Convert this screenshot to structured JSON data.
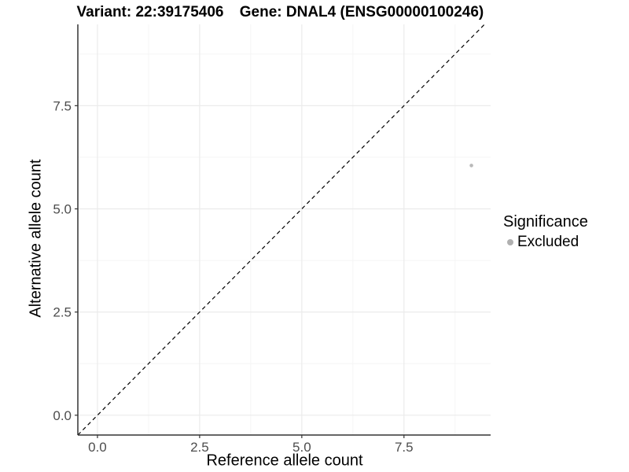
{
  "chart_data": {
    "type": "scatter",
    "title_left": "Variant: 22:39175406",
    "title_right": "Gene: DNAL4 (ENSG00000100246)",
    "xlabel": "Reference allele count",
    "ylabel": "Alternative allele count",
    "xlim": [
      -0.48,
      9.62
    ],
    "ylim": [
      -0.48,
      9.47
    ],
    "x_ticks": [
      0.0,
      2.5,
      5.0,
      7.5
    ],
    "y_ticks": [
      0.0,
      2.5,
      5.0,
      7.5
    ],
    "x_tick_labels": [
      "0.0",
      "2.5",
      "5.0",
      "7.5"
    ],
    "y_tick_labels": [
      "0.0",
      "2.5",
      "5.0",
      "7.5"
    ],
    "x_minor_ticks": [
      1.25,
      3.75,
      6.25,
      8.75
    ],
    "y_minor_ticks": [
      1.25,
      3.75,
      6.25,
      8.75
    ],
    "grid": true,
    "series": [
      {
        "name": "Excluded",
        "color": "#b9b9b9",
        "points": [
          {
            "x": 9.15,
            "y": 6.05
          }
        ]
      }
    ],
    "reference_line": {
      "kind": "identity",
      "slope": 1,
      "intercept": 0,
      "style": "dashed",
      "color": "#000000"
    },
    "legend": {
      "title": "Significance",
      "position": "right",
      "entries": [
        {
          "label": "Excluded",
          "color": "#b0b0b0"
        }
      ]
    },
    "style": {
      "point_radius": 2.3,
      "legend_key_radius": 4,
      "grid_major_color": "#ebebeb",
      "grid_minor_color": "#f5f5f5",
      "axis_color": "#333333",
      "tick_label_color": "#4d4d4d",
      "background": "#ffffff"
    }
  }
}
